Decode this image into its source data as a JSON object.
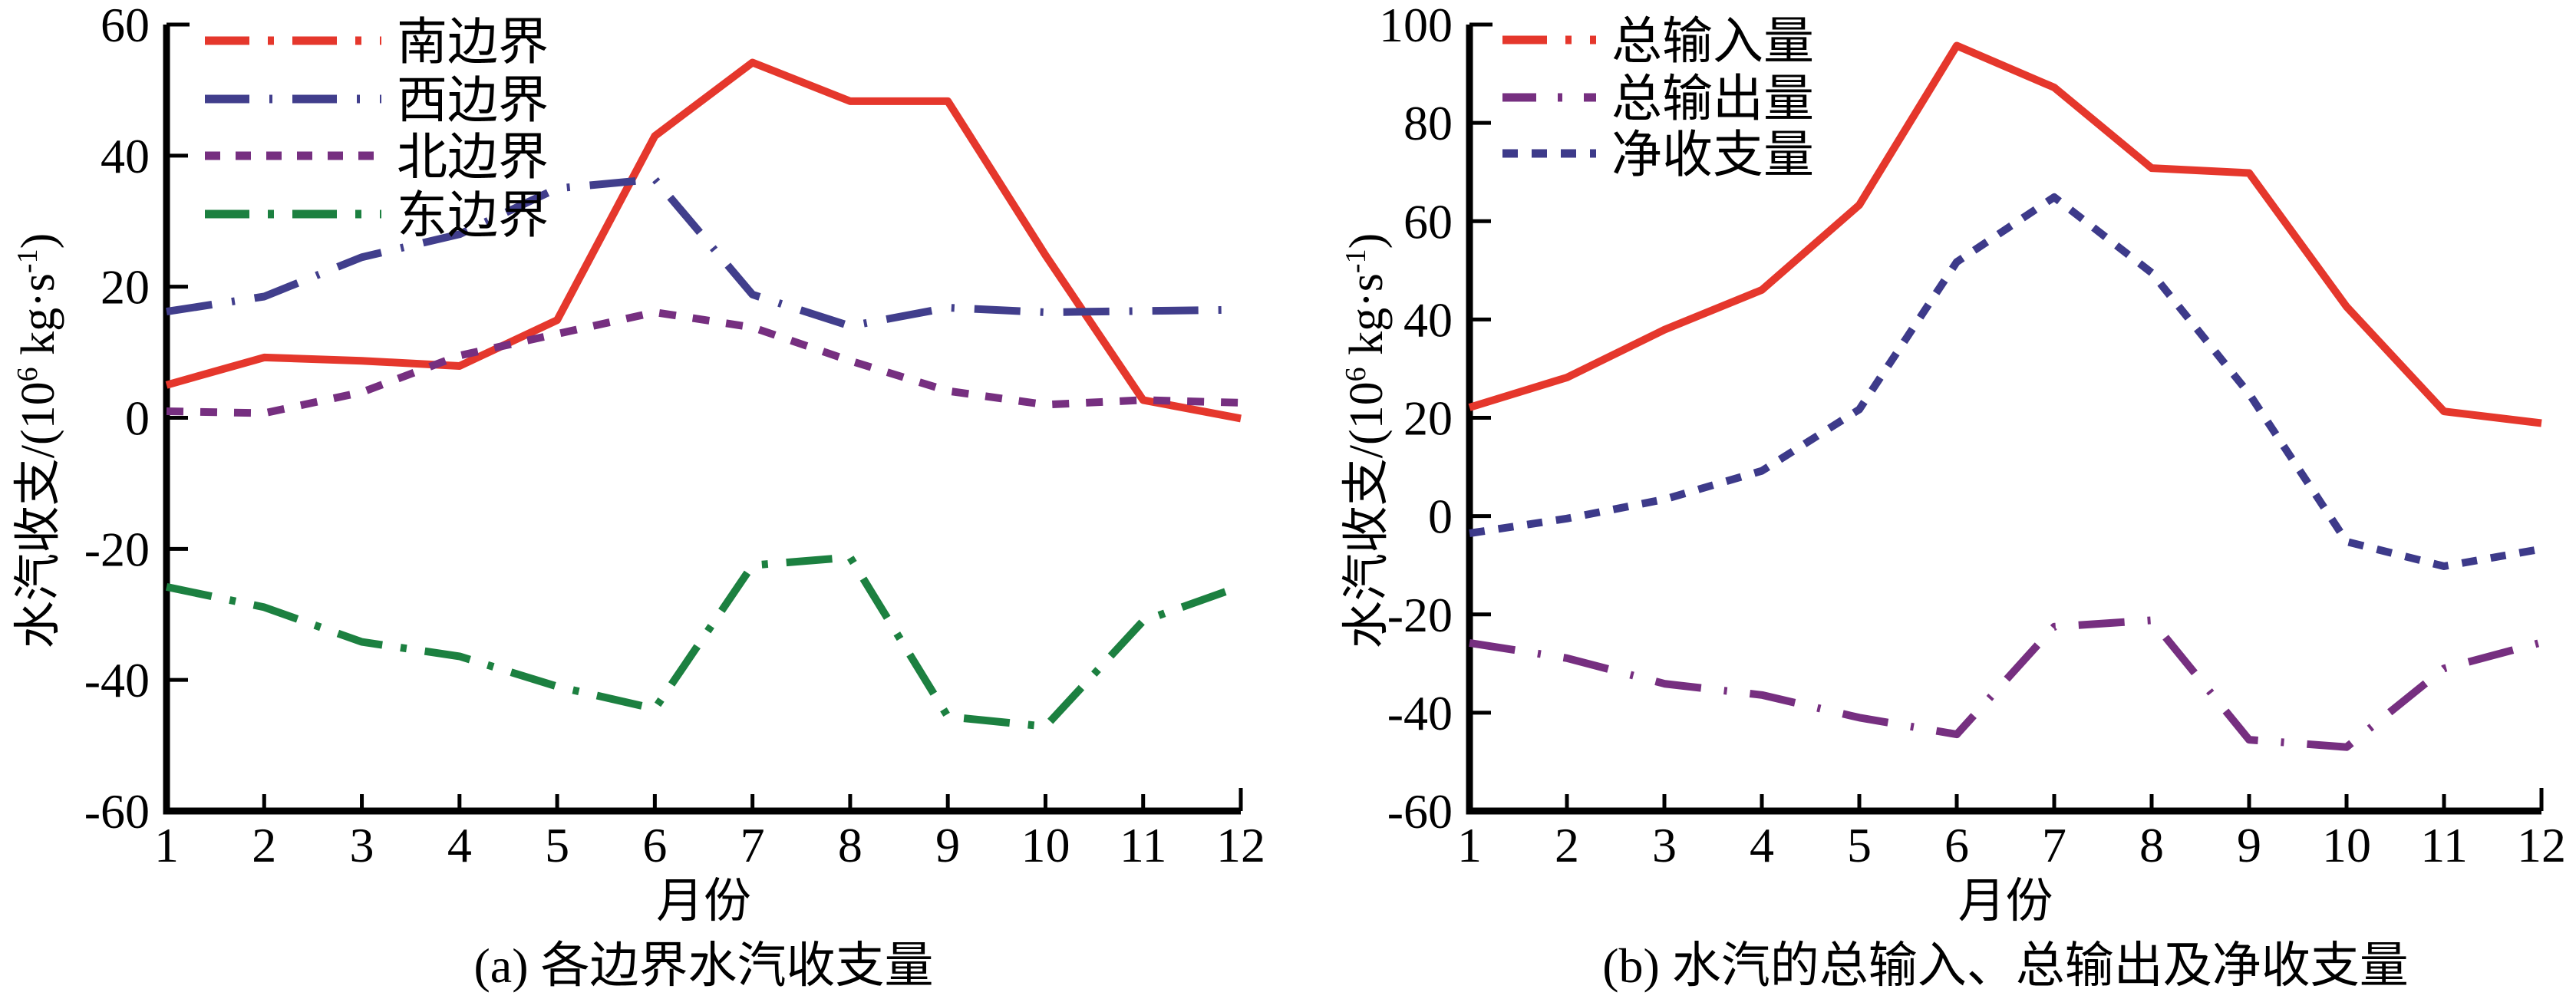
{
  "chart_data": [
    {
      "type": "line",
      "title": "(a) 各边界水汽收支量",
      "xlabel": "月份",
      "ylabel": "水汽收支/(10⁶ kg·s⁻¹)",
      "ylabel_parts": {
        "main": "水汽收支/(10",
        "exp1": "6",
        "mid": " kg·s",
        "exp2": "-1",
        "end": ")"
      },
      "x": [
        1,
        2,
        3,
        4,
        5,
        6,
        7,
        8,
        9,
        10,
        11,
        12
      ],
      "xticks": [
        "1",
        "2",
        "3",
        "4",
        "5",
        "6",
        "7",
        "8",
        "9",
        "10",
        "11",
        "12"
      ],
      "ylim": [
        -60,
        60
      ],
      "yticks": [
        "-60",
        "-40",
        "-20",
        "0",
        "20",
        "40",
        "60"
      ],
      "ytick_values": [
        -60,
        -40,
        -20,
        0,
        20,
        40,
        60
      ],
      "grid": false,
      "legend_position": "top-left",
      "series": [
        {
          "name": "南边界",
          "color": "#e5372c",
          "dash": "solid",
          "values": [
            5.0,
            9.2,
            8.7,
            7.9,
            14.9,
            43.0,
            54.2,
            48.3,
            48.3,
            24.8,
            2.7,
            -0.1
          ]
        },
        {
          "name": "西边界",
          "color": "#413e8c",
          "dash": "dash",
          "values": [
            16.2,
            18.5,
            24.5,
            28.0,
            35.0,
            36.4,
            18.8,
            14.0,
            16.8,
            16.1,
            16.3,
            16.5
          ]
        },
        {
          "name": "北边界",
          "color": "#762f80",
          "dash": "dot",
          "values": [
            1.0,
            0.7,
            3.9,
            9.5,
            12.8,
            16.1,
            13.8,
            8.7,
            4.1,
            2.0,
            2.7,
            2.3
          ]
        },
        {
          "name": "东边界",
          "color": "#1c8040",
          "dash": "dashdot",
          "values": [
            -25.8,
            -28.9,
            -34.2,
            -36.4,
            -41.0,
            -44.4,
            -22.5,
            -21.3,
            -45.6,
            -47.1,
            -31.0,
            -25.7
          ]
        }
      ]
    },
    {
      "type": "line",
      "title": "(b) 水汽的总输入、总输出及净收支量",
      "xlabel": "月份",
      "ylabel": "水汽收支/(10⁶ kg·s⁻¹)",
      "ylabel_parts": {
        "main": "水汽收支/(10",
        "exp1": "6",
        "mid": " kg·s",
        "exp2": "-1",
        "end": ")"
      },
      "x": [
        1,
        2,
        3,
        4,
        5,
        6,
        7,
        8,
        9,
        10,
        11,
        12
      ],
      "xticks": [
        "1",
        "2",
        "3",
        "4",
        "5",
        "6",
        "7",
        "8",
        "9",
        "10",
        "11",
        "12"
      ],
      "ylim": [
        -60,
        100
      ],
      "yticks": [
        "-60",
        "-40",
        "-20",
        "0",
        "20",
        "40",
        "60",
        "80",
        "100"
      ],
      "ytick_values": [
        -60,
        -40,
        -20,
        0,
        20,
        40,
        60,
        80,
        100
      ],
      "grid": false,
      "legend_position": "top-left",
      "series": [
        {
          "name": "总输入量",
          "color": "#e5372c",
          "dash": "solid",
          "values": [
            22.1,
            28.2,
            37.9,
            46.0,
            63.3,
            95.7,
            87.2,
            70.8,
            69.8,
            42.6,
            21.3,
            18.9
          ]
        },
        {
          "name": "总输出量",
          "color": "#762f80",
          "dash": "longdash",
          "values": [
            -25.8,
            -28.9,
            -34.1,
            -36.4,
            -41.0,
            -44.4,
            -22.5,
            -21.2,
            -45.5,
            -47.0,
            -31.0,
            -25.7
          ]
        },
        {
          "name": "净收支量",
          "color": "#3d3a8a",
          "dash": "shortdash",
          "values": [
            -3.5,
            -0.5,
            3.4,
            9.2,
            21.7,
            51.7,
            64.9,
            49.5,
            24.9,
            -5.2,
            -10.2,
            -6.7
          ]
        }
      ]
    }
  ]
}
